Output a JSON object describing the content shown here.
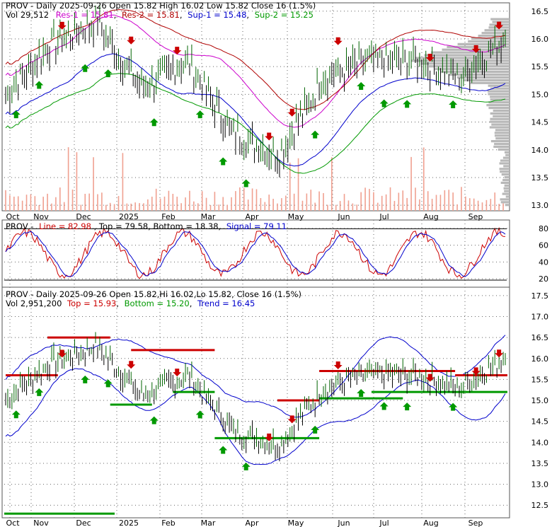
{
  "colors": {
    "up": "#006400",
    "down": "#cc0000",
    "res1": "#cc00cc",
    "res2": "#b00000",
    "sup1": "#0000cc",
    "sup2": "#009900",
    "line": "#cc0000",
    "signal": "#0000cc",
    "volume": "#f0a090",
    "grid": "#666666",
    "profile": "#b8b8b8"
  },
  "panel1": {
    "header1_prefix": "PROV - Daily 2025-09-26 Open 15.82  High 16.02  Low 15.82  Close 16 (1.5%)",
    "header2_vol": "Vol 29,512",
    "header2_res1": "Res-1 = 15.81",
    "header2_res2": "Res-2 = 15.81",
    "header2_sup1": "Sup-1 = 15.48",
    "header2_sup2": "Sup-2 = 15.25"
  },
  "panel2": {
    "header_prefix": "PROV -",
    "header_line": "Line = 82.98",
    "header_topbottom": ", Top = 79.58, Bottom = 18.38,",
    "header_signal": "Signal = 79.11"
  },
  "panel3": {
    "header1": "PROV - Daily 2025-09-26 Open 15.82,Hi 16.02,Lo 15.82, Close 16 (1.5%)",
    "header2_vol": "Vol 2,951,200",
    "header2_top": "Top = 15.93",
    "header2_bottom": "Bottom = 15.20",
    "header2_trend": "Trend = 16.45"
  },
  "x_axis_months": [
    "Oct",
    "Nov",
    "Dec",
    "2025",
    "Feb",
    "Mar",
    "Apr",
    "May",
    "Jun",
    "Jul",
    "Aug",
    "Sep"
  ],
  "chart_data": [
    {
      "type": "line",
      "title": "PROV - Daily 2025-09-26 Open 15.82  High 16.02  Low 15.82  Close 16 (1.5%)",
      "y_ticks": [
        "16.5",
        "16.0",
        "15.5",
        "15.0",
        "14.5",
        "14.0",
        "13.5",
        "13.0"
      ],
      "ylim": [
        12.9,
        16.65
      ],
      "x_range": [
        "2024-10",
        "2025-09-26"
      ],
      "key_closes": [
        {
          "month": "Oct",
          "close": 15.3
        },
        {
          "month": "Nov",
          "close": 15.9
        },
        {
          "month": "Dec",
          "close": 16.3
        },
        {
          "month": "2025",
          "close": 15.1
        },
        {
          "month": "Feb",
          "close": 15.6
        },
        {
          "month": "Mar",
          "close": 14.3
        },
        {
          "month": "Apr",
          "close": 13.9
        },
        {
          "month": "May",
          "close": 15.3
        },
        {
          "month": "Jun",
          "close": 15.6
        },
        {
          "month": "Jul",
          "close": 15.6
        },
        {
          "month": "Aug",
          "close": 15.3
        },
        {
          "month": "Sep",
          "close": 16.0
        }
      ],
      "levels": {
        "res1": 15.81,
        "res2": 15.81,
        "sup1": 15.48,
        "sup2": 15.25
      },
      "volume": "29,512",
      "grid": true
    },
    {
      "type": "line",
      "y_ticks": [
        "80",
        "60",
        "40",
        "20"
      ],
      "ylim": [
        10,
        90
      ],
      "series": [
        {
          "name": "Line",
          "last": 82.98
        },
        {
          "name": "Signal",
          "last": 79.11
        }
      ],
      "levels": {
        "top": 79.58,
        "bottom": 18.38
      },
      "grid": true
    },
    {
      "type": "line",
      "title": "PROV - Daily 2025-09-26 Open 15.82,Hi 16.02,Lo 15.82, Close 16 (1.5%)",
      "y_ticks": [
        "17.5",
        "17.0",
        "16.5",
        "16.0",
        "15.5",
        "15.0",
        "14.5",
        "14.0",
        "13.5",
        "13.0",
        "12.5"
      ],
      "ylim": [
        12.2,
        17.7
      ],
      "levels": {
        "top": 15.93,
        "bottom": 15.2,
        "trend": 16.45
      },
      "volume": "2,951,200",
      "grid": true
    }
  ]
}
